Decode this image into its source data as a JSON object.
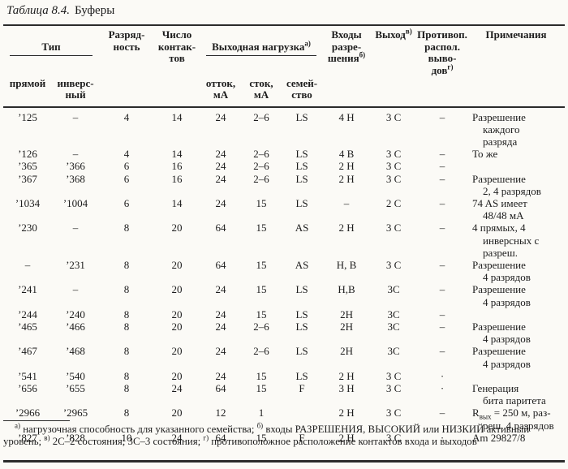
{
  "page": {
    "background": "#fbfaf6",
    "text_color": "#1c1c1c",
    "line_color": "#2b2b2b"
  },
  "title": {
    "italic": "Таблица 8.4.",
    "name": "Буферы"
  },
  "table": {
    "header": {
      "type_group": {
        "text": "Тип"
      },
      "direct": "прямой",
      "inverse": "инверс-\nный",
      "bits": "Разряд-\nность",
      "pins": "Число\nконтак-\nтов",
      "load_group": {
        "text": "Выходная нагрузка",
        "sup": "а)"
      },
      "source": "отток,\nмА",
      "sink": "сток,\nмА",
      "family": "семей-\nство",
      "enable": {
        "text": "Входы\nразре-\nшения",
        "sup": "б)"
      },
      "output": {
        "text": "Выход",
        "sup": "в)"
      },
      "opposite": {
        "text": "Противоп.\nраспол.\nвыво-\nдов",
        "sup": "г)"
      },
      "notes": "Примечания"
    },
    "rows": [
      {
        "direct": "’125",
        "inverse": "–",
        "bits": "4",
        "pins": "14",
        "source": "24",
        "sink": "2–6",
        "family": "LS",
        "enable": "4 Н",
        "output": "3 С",
        "opposite": "–",
        "note": [
          "Разрешение",
          "каждого",
          "разряда"
        ]
      },
      {
        "direct": "’126",
        "inverse": "–",
        "bits": "4",
        "pins": "14",
        "source": "24",
        "sink": "2–6",
        "family": "LS",
        "enable": "4 В",
        "output": "3 С",
        "opposite": "–",
        "note": [
          "То же"
        ]
      },
      {
        "direct": "’365",
        "inverse": "’366",
        "bits": "6",
        "pins": "16",
        "source": "24",
        "sink": "2–6",
        "family": "LS",
        "enable": "2 Н",
        "output": "3 С",
        "opposite": "–",
        "note": []
      },
      {
        "direct": "’367",
        "inverse": "’368",
        "bits": "6",
        "pins": "16",
        "source": "24",
        "sink": "2–6",
        "family": "LS",
        "enable": "2 Н",
        "output": "3 С",
        "opposite": "–",
        "note": [
          "Разрешение",
          "2, 4 разрядов"
        ]
      },
      {
        "direct": "’1034",
        "inverse": "’1004",
        "bits": "6",
        "pins": "14",
        "source": "24",
        "sink": "15",
        "family": "LS",
        "enable": "–",
        "output": "2 С",
        "opposite": "–",
        "note": [
          "74 AS имеет",
          "48/48 мА"
        ]
      },
      {
        "direct": "’230",
        "inverse": "–",
        "bits": "8",
        "pins": "20",
        "source": "64",
        "sink": "15",
        "family": "AS",
        "enable": "2 Н",
        "output": "3 С",
        "opposite": "–",
        "note": [
          "4 прямых, 4",
          "инверсных с",
          "разреш."
        ]
      },
      {
        "direct": "–",
        "inverse": "’231",
        "bits": "8",
        "pins": "20",
        "source": "64",
        "sink": "15",
        "family": "AS",
        "enable": "Н, В",
        "output": "3 С",
        "opposite": "–",
        "note": [
          "Разрешение",
          "4 разрядов"
        ]
      },
      {
        "direct": "’241",
        "inverse": "–",
        "bits": "8",
        "pins": "20",
        "source": "24",
        "sink": "15",
        "family": "LS",
        "enable": "Н,В",
        "output": "3С",
        "opposite": "–",
        "note": [
          "Разрешение",
          "4 разрядов"
        ]
      },
      {
        "direct": "’244",
        "inverse": "’240",
        "bits": "8",
        "pins": "20",
        "source": "24",
        "sink": "15",
        "family": "LS",
        "enable": "2Н",
        "output": "3С",
        "opposite": "–",
        "note": []
      },
      {
        "direct": "’465",
        "inverse": "’466",
        "bits": "8",
        "pins": "20",
        "source": "24",
        "sink": "2–6",
        "family": "LS",
        "enable": "2Н",
        "output": "3С",
        "opposite": "–",
        "note": [
          "Разрешение",
          "4 разрядов"
        ]
      },
      {
        "direct": "’467",
        "inverse": "’468",
        "bits": "8",
        "pins": "20",
        "source": "24",
        "sink": "2–6",
        "family": "LS",
        "enable": "2Н",
        "output": "3С",
        "opposite": "–",
        "note": [
          "Разрешение",
          "4 разрядов"
        ]
      },
      {
        "direct": "’541",
        "inverse": "’540",
        "bits": "8",
        "pins": "20",
        "source": "24",
        "sink": "15",
        "family": "LS",
        "enable": "2 Н",
        "output": "3 С",
        "opposite": "·",
        "note": []
      },
      {
        "direct": "’656",
        "inverse": "’655",
        "bits": "8",
        "pins": "24",
        "source": "64",
        "sink": "15",
        "family": "F",
        "enable": "3 Н",
        "output": "3 С",
        "opposite": "·",
        "note": [
          "Генерация",
          "бита паритета"
        ]
      },
      {
        "direct": "’2966",
        "inverse": "’2965",
        "bits": "8",
        "pins": "20",
        "source": "12",
        "sink": "1",
        "family": "",
        "enable": "2 Н",
        "output": "3 С",
        "opposite": "–",
        "note": [
          [
            {
              "t": "R"
            },
            {
              "sub": "вых"
            },
            {
              "t": " = 250 м, раз-"
            }
          ],
          "реш. 4 разрядов"
        ]
      },
      {
        "direct": "’827",
        "inverse": "’828",
        "bits": "10",
        "pins": "24",
        "source": "64",
        "sink": "15",
        "family": "F",
        "enable": "2 Н",
        "output": "3 С",
        "opposite": "·",
        "note": [
          "Am 29827/8"
        ]
      }
    ]
  },
  "footnote": {
    "segments": [
      {
        "sup": "а)"
      },
      {
        "t": " нагрузочная способность для указанного семейства; "
      },
      {
        "sup": "б)"
      },
      {
        "t": " входы РАЗРЕШЕНИЯ, ВЫСОКИЙ или НИЗКИЙ активный уровень; "
      },
      {
        "sup": "в)"
      },
      {
        "t": " 2С–2 состояния; 3С–3 состояния; "
      },
      {
        "sup": "г)"
      },
      {
        "t": " противоположное расположение контактов входа и выходов"
      }
    ]
  }
}
